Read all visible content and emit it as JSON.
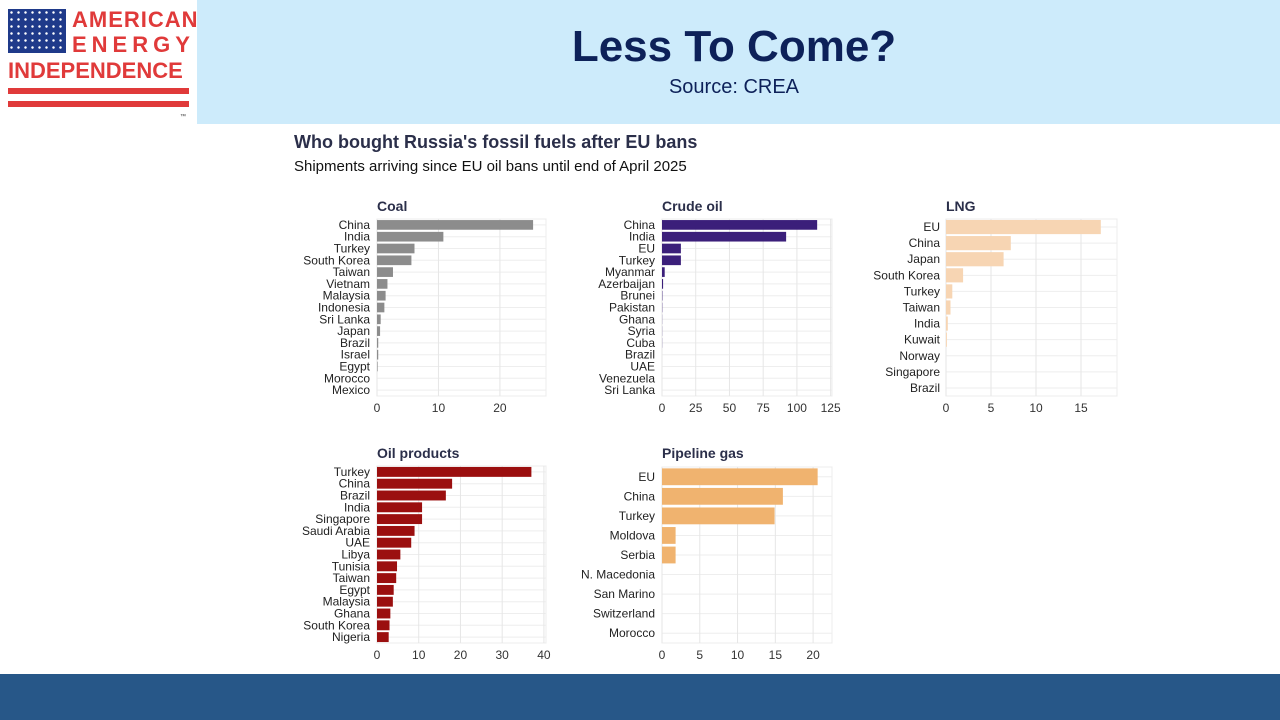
{
  "logo": {
    "line1": "AMERICAN",
    "line2": "ENERGY",
    "line3": "INDEPENDENCE",
    "tm": "™"
  },
  "slide": {
    "title": "Less To Come?",
    "source": "Source: CREA"
  },
  "figure": {
    "title": "Who bought Russia's fossil fuels after EU bans",
    "subtitle": "Shipments arriving since EU oil bans until end of April 2025"
  },
  "colors": {
    "header_bg": "#cdebfb",
    "title_text": "#0d2159",
    "footer_bg": "#275788",
    "logo_red": "#e03a3a",
    "logo_blue": "#1f3a8a"
  },
  "chart_data": [
    {
      "type": "bar",
      "orientation": "horizontal",
      "title": "Coal",
      "color": "#8c8c8c",
      "categories": [
        "China",
        "India",
        "Turkey",
        "South Korea",
        "Taiwan",
        "Vietnam",
        "Malaysia",
        "Indonesia",
        "Sri Lanka",
        "Japan",
        "Brazil",
        "Israel",
        "Egypt",
        "Morocco",
        "Mexico"
      ],
      "values": [
        25.4,
        10.8,
        6.1,
        5.6,
        2.6,
        1.7,
        1.4,
        1.2,
        0.6,
        0.5,
        0.2,
        0.2,
        0.1,
        0.0,
        0.0
      ],
      "xlim": [
        0,
        27.5
      ],
      "xticks": [
        0,
        10,
        20
      ],
      "grid": true
    },
    {
      "type": "bar",
      "orientation": "horizontal",
      "title": "Crude oil",
      "color": "#3b1f7a",
      "categories": [
        "China",
        "India",
        "EU",
        "Turkey",
        "Myanmar",
        "Azerbaijan",
        "Brunei",
        "Pakistan",
        "Ghana",
        "Syria",
        "Cuba",
        "Brazil",
        "UAE",
        "Venezuela",
        "Sri Lanka"
      ],
      "values": [
        115,
        92,
        14,
        14,
        2,
        0.8,
        0.3,
        0.2,
        0.1,
        0.1,
        0.1,
        0.0,
        0.0,
        0.0,
        0.0
      ],
      "xlim": [
        0,
        126
      ],
      "xticks": [
        0,
        25,
        50,
        75,
        100,
        125
      ],
      "grid": true
    },
    {
      "type": "bar",
      "orientation": "horizontal",
      "title": "LNG",
      "color": "#f7d5b3",
      "categories": [
        "EU",
        "China",
        "Japan",
        "South Korea",
        "Turkey",
        "Taiwan",
        "India",
        "Kuwait",
        "Norway",
        "Singapore",
        "Brazil"
      ],
      "values": [
        17.2,
        7.2,
        6.4,
        1.9,
        0.7,
        0.5,
        0.2,
        0.1,
        0.0,
        0.0,
        0.0
      ],
      "xlim": [
        0,
        19
      ],
      "xticks": [
        0,
        5,
        10,
        15
      ],
      "grid": true
    },
    {
      "type": "bar",
      "orientation": "horizontal",
      "title": "Oil products",
      "color": "#9b0f0f",
      "categories": [
        "Turkey",
        "China",
        "Brazil",
        "India",
        "Singapore",
        "Saudi Arabia",
        "UAE",
        "Libya",
        "Tunisia",
        "Taiwan",
        "Egypt",
        "Malaysia",
        "Ghana",
        "South Korea",
        "Nigeria"
      ],
      "values": [
        37,
        18,
        16.5,
        10.8,
        10.8,
        9,
        8.2,
        5.6,
        4.8,
        4.6,
        4.0,
        3.8,
        3.2,
        3.0,
        2.8
      ],
      "xlim": [
        0,
        40.5
      ],
      "xticks": [
        0,
        10,
        20,
        30,
        40
      ],
      "grid": true
    },
    {
      "type": "bar",
      "orientation": "horizontal",
      "title": "Pipeline gas",
      "color": "#f0b36f",
      "categories": [
        "EU",
        "China",
        "Turkey",
        "Moldova",
        "Serbia",
        "N. Macedonia",
        "San Marino",
        "Switzerland",
        "Morocco"
      ],
      "values": [
        20.6,
        16,
        14.9,
        1.8,
        1.8,
        0.0,
        0.0,
        0.0,
        0.0
      ],
      "xlim": [
        0,
        22.5
      ],
      "xticks": [
        0,
        5,
        10,
        15,
        20
      ],
      "grid": true
    }
  ]
}
